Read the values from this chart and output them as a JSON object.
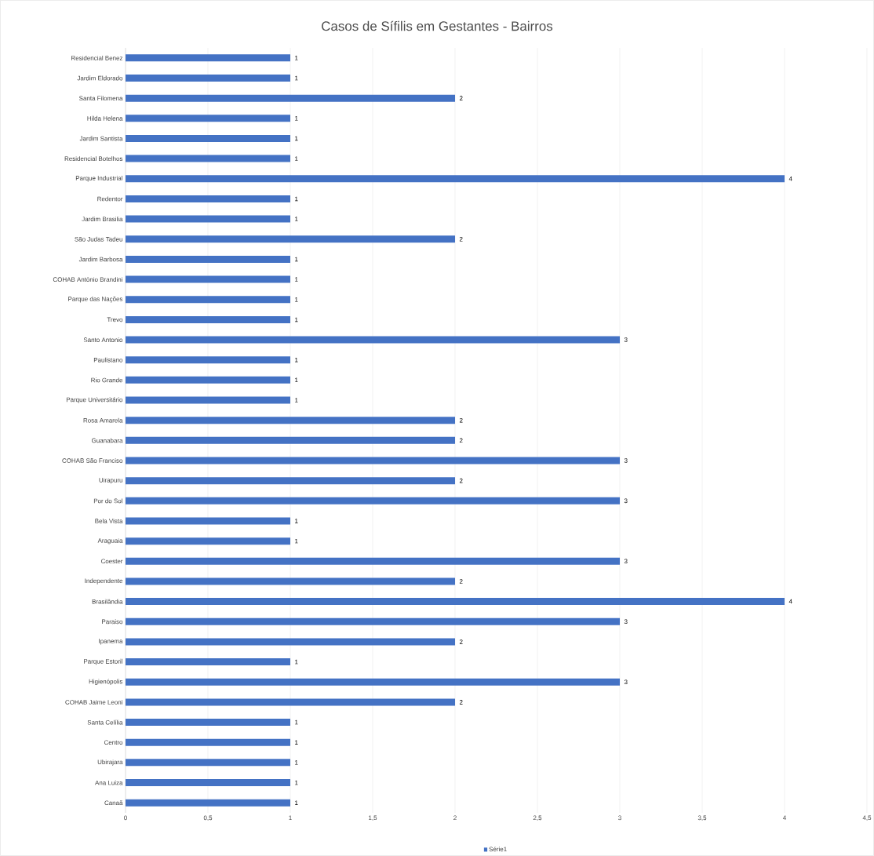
{
  "chart_data": {
    "type": "bar",
    "orientation": "horizontal",
    "title": "Casos de Sífilis em Gestantes  - Bairros",
    "categories": [
      "Residencial Benez",
      "Jardim Eldorado",
      "Santa Filomena",
      "Hilda Helena",
      "Jardim Santista",
      "Residencial Botelhos",
      "Parque Industrial",
      "Redentor",
      "Jardim Brasilia",
      "São Judas Tadeu",
      "Jardim Barbosa",
      "COHAB Antônio Brandini",
      "Parque das Nações",
      "Trevo",
      "Santo Antonio",
      "Paulistano",
      "Rio Grande",
      "Parque Universitário",
      "Rosa Amarela",
      "Guanabara",
      "COHAB São Franciso",
      "Uirapuru",
      "Por do Sol",
      "Bela Vista",
      "Araguaia",
      "Coester",
      "Independente",
      "Brasilândia",
      "Paraiso",
      "Ipanema",
      "Parque Estoril",
      "Higienópolis",
      "COHAB Jaime Leoni",
      "Santa Celília",
      "Centro",
      "Ubirajara",
      "Ana Luiza",
      "Canaã"
    ],
    "series": [
      {
        "name": "Série1",
        "color": "#4472c4",
        "values": [
          1,
          1,
          2,
          1,
          1,
          1,
          4,
          1,
          1,
          2,
          1,
          1,
          1,
          1,
          3,
          1,
          1,
          1,
          2,
          2,
          3,
          2,
          3,
          1,
          1,
          3,
          2,
          4,
          3,
          2,
          1,
          3,
          2,
          1,
          1,
          1,
          1,
          1
        ]
      }
    ],
    "xlim": [
      0,
      4.5
    ],
    "xticks": [
      0,
      {
        "value": 0.5,
        "label": "0,5"
      },
      1,
      {
        "value": 1.5,
        "label": "1,5"
      },
      2,
      {
        "value": 2.5,
        "label": "2,5"
      },
      3,
      {
        "value": 3.5,
        "label": "3,5"
      },
      4,
      {
        "value": 4.5,
        "label": "4,5"
      }
    ],
    "grid": "x",
    "legend": "bottom",
    "data_labels": true
  }
}
